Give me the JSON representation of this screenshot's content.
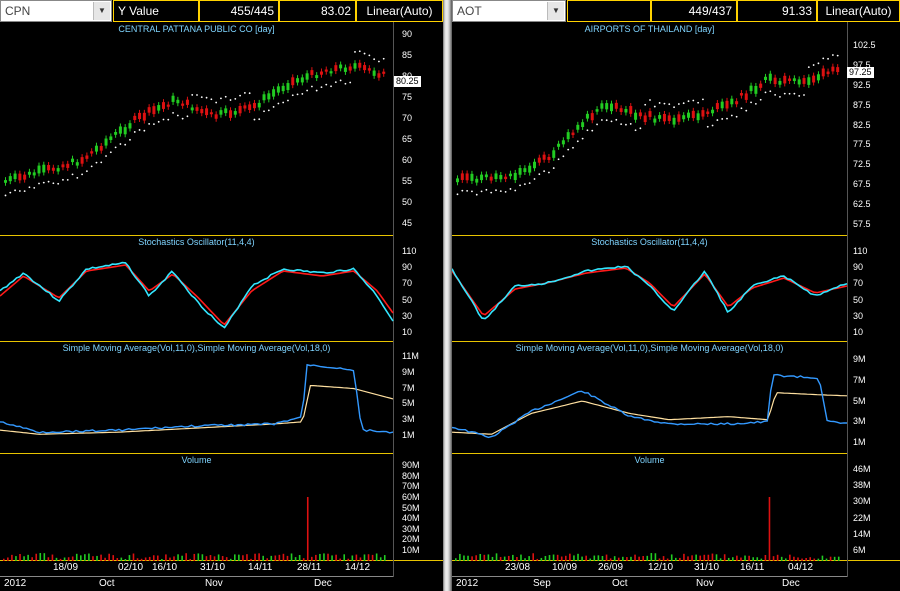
{
  "left": {
    "symbol": "CPN",
    "y_mode_label": "Y Value",
    "count": "455/445",
    "value": "83.02",
    "scale": "Linear(Auto)",
    "price_title": "CENTRAL PATTANA PUBLIC CO [day]",
    "last_price": "80.25",
    "price_ticks": [
      "90",
      "85",
      "80",
      "75",
      "70",
      "65",
      "60",
      "55",
      "50",
      "45"
    ],
    "stoch_title": "Stochastics Oscillator(11,4,4)",
    "stoch_ticks": [
      "110",
      "90",
      "70",
      "50",
      "30",
      "10"
    ],
    "sma_title": "Simple Moving Average(Vol,11,0),Simple Moving Average(Vol,18,0)",
    "sma_ticks": [
      "11M",
      "9M",
      "7M",
      "5M",
      "3M",
      "1M"
    ],
    "vol_title": "Volume",
    "vol_ticks": [
      "90M",
      "80M",
      "70M",
      "60M",
      "50M",
      "40M",
      "30M",
      "20M",
      "10M"
    ],
    "date_labels": [
      "18/09",
      "02/10",
      "16/10",
      "31/10",
      "14/11",
      "28/11",
      "14/12"
    ],
    "month_labels": [
      "2012",
      "Oct",
      "Nov",
      "Dec"
    ]
  },
  "right": {
    "symbol": "AOT",
    "count": "449/437",
    "value": "91.33",
    "scale": "Linear(Auto)",
    "price_title": "AIRPORTS OF THAILAND [day]",
    "last_price": "97.25",
    "price_ticks": [
      "102.5",
      "97.5",
      "92.5",
      "87.5",
      "82.5",
      "77.5",
      "72.5",
      "67.5",
      "62.5",
      "57.5"
    ],
    "stoch_title": "Stochastics Oscillator(11,4,4)",
    "stoch_ticks": [
      "110",
      "90",
      "70",
      "50",
      "30",
      "10"
    ],
    "sma_title": "Simple Moving Average(Vol,11,0),Simple Moving Average(Vol,18,0)",
    "sma_ticks": [
      "9M",
      "7M",
      "5M",
      "3M",
      "1M"
    ],
    "vol_title": "Volume",
    "vol_ticks": [
      "46M",
      "38M",
      "30M",
      "22M",
      "14M",
      "6M"
    ],
    "date_labels": [
      "23/08",
      "10/09",
      "26/09",
      "12/10",
      "31/10",
      "16/11",
      "04/12"
    ],
    "month_labels": [
      "2012",
      "Sep",
      "Oct",
      "Nov",
      "Dec"
    ]
  },
  "colors": {
    "background": "#000000",
    "frame": "#ffd200",
    "bull": "#22cc22",
    "bear": "#dd1111",
    "sar": "#ffffff",
    "stoch_k": "#33e6ff",
    "stoch_d": "#ff1a1a",
    "sma_fast": "#3399ff",
    "sma_slow": "#ffe0a0",
    "title": "#7fd4ff"
  }
}
